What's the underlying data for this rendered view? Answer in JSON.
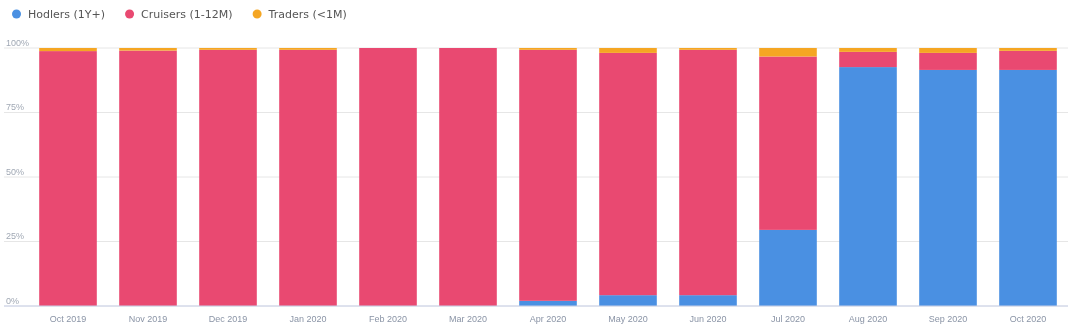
{
  "chart_data": {
    "type": "bar",
    "stacked": true,
    "categories": [
      "Oct 2019",
      "Nov 2019",
      "Dec 2019",
      "Jan 2020",
      "Feb 2020",
      "Mar 2020",
      "Apr 2020",
      "May 2020",
      "Jun 2020",
      "Jul 2020",
      "Aug 2020",
      "Sep 2020",
      "Oct 2020"
    ],
    "series": [
      {
        "name": "Hodlers (1Y+)",
        "color": "#4a90e2",
        "values": [
          0,
          0,
          0,
          0,
          0,
          0,
          2,
          4.2,
          4.2,
          29.5,
          92.6,
          91.5,
          91.5
        ]
      },
      {
        "name": "Cruisers (1-12M)",
        "color": "#e94971",
        "values": [
          98.8,
          99,
          99.3,
          99.3,
          100,
          100,
          97.3,
          93.9,
          95.1,
          67.2,
          5.9,
          6.6,
          7.4
        ]
      },
      {
        "name": "Traders (<1M)",
        "color": "#f5a623",
        "values": [
          1.2,
          1,
          0.7,
          0.7,
          0,
          0,
          0.7,
          1.9,
          0.7,
          3.3,
          1.5,
          1.9,
          1.1
        ]
      }
    ],
    "ylim": [
      0,
      100
    ],
    "yticks": [
      {
        "value": 0,
        "label": "0%"
      },
      {
        "value": 25,
        "label": "25%"
      },
      {
        "value": 50,
        "label": "50%"
      },
      {
        "value": 75,
        "label": "75%"
      },
      {
        "value": 100,
        "label": "100%"
      }
    ],
    "grid": "y",
    "legend": "top left"
  }
}
